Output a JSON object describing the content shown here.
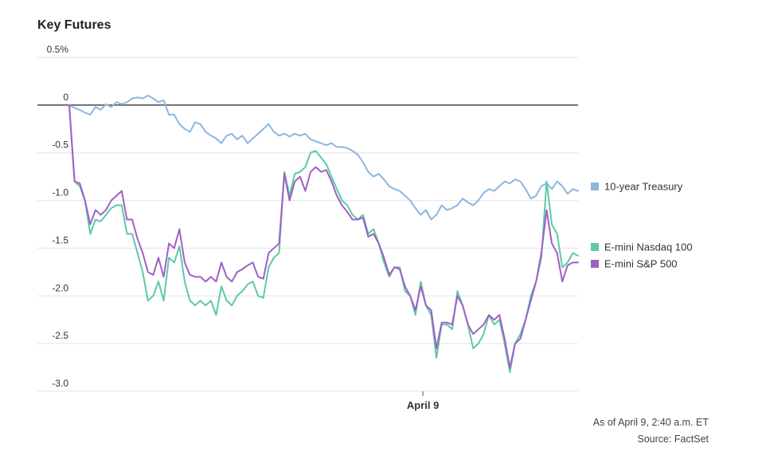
{
  "colors": {
    "treasury": "#8db5e0",
    "nasdaq": "#5cc9a7",
    "sp500": "#a15fc4",
    "grid": "#e4e4e4",
    "zero_line": "#555555"
  },
  "chart_data": {
    "type": "line",
    "title": "Key Futures",
    "xlabel": "",
    "ylabel": "",
    "ylim": [
      -3.0,
      0.5
    ],
    "y_ticks": [
      0.5,
      0.0,
      -0.5,
      -1.0,
      -1.5,
      -2.0,
      -2.5,
      -3.0
    ],
    "y_tick_labels": [
      "0.5%",
      "0",
      "-0.5",
      "-1.0",
      "-1.5",
      "-2.0",
      "-2.5",
      "-3.0"
    ],
    "x_tick_labels": [
      "April 9"
    ],
    "x_tick_positions": [
      0.695
    ],
    "grid": true,
    "legend_position": "right",
    "series": [
      {
        "name": "10-year Treasury",
        "color_key": "treasury",
        "values": [
          0,
          -0.03,
          -0.05,
          -0.08,
          -0.1,
          -0.02,
          -0.05,
          0.01,
          -0.02,
          0.03,
          0.01,
          0.03,
          0.07,
          0.08,
          0.07,
          0.1,
          0.07,
          0.03,
          0.05,
          -0.1,
          -0.1,
          -0.2,
          -0.25,
          -0.28,
          -0.18,
          -0.2,
          -0.28,
          -0.32,
          -0.35,
          -0.4,
          -0.32,
          -0.3,
          -0.36,
          -0.32,
          -0.4,
          -0.35,
          -0.3,
          -0.25,
          -0.2,
          -0.28,
          -0.32,
          -0.3,
          -0.33,
          -0.3,
          -0.32,
          -0.3,
          -0.36,
          -0.38,
          -0.4,
          -0.42,
          -0.4,
          -0.44,
          -0.44,
          -0.45,
          -0.48,
          -0.52,
          -0.6,
          -0.7,
          -0.75,
          -0.72,
          -0.78,
          -0.85,
          -0.88,
          -0.9,
          -0.95,
          -1.0,
          -1.08,
          -1.15,
          -1.1,
          -1.2,
          -1.15,
          -1.05,
          -1.1,
          -1.08,
          -1.05,
          -0.98,
          -1.02,
          -1.05,
          -1.0,
          -0.92,
          -0.88,
          -0.9,
          -0.85,
          -0.8,
          -0.82,
          -0.78,
          -0.8,
          -0.88,
          -0.98,
          -0.95,
          -0.85,
          -0.82,
          -0.88,
          -0.8,
          -0.85,
          -0.93,
          -0.88,
          -0.9
        ]
      },
      {
        "name": "E-mini Nasdaq 100",
        "color_key": "nasdaq",
        "values": [
          0,
          -0.8,
          -0.85,
          -1.0,
          -1.35,
          -1.2,
          -1.22,
          -1.15,
          -1.08,
          -1.05,
          -1.05,
          -1.35,
          -1.35,
          -1.55,
          -1.75,
          -2.05,
          -2.0,
          -1.85,
          -2.05,
          -1.6,
          -1.65,
          -1.48,
          -1.85,
          -2.05,
          -2.1,
          -2.05,
          -2.1,
          -2.05,
          -2.2,
          -1.9,
          -2.05,
          -2.1,
          -2.0,
          -1.95,
          -1.88,
          -1.85,
          -2.0,
          -2.02,
          -1.7,
          -1.6,
          -1.55,
          -0.7,
          -0.95,
          -0.72,
          -0.7,
          -0.65,
          -0.5,
          -0.48,
          -0.55,
          -0.62,
          -0.75,
          -0.88,
          -1.0,
          -1.05,
          -1.15,
          -1.2,
          -1.15,
          -1.35,
          -1.3,
          -1.45,
          -1.65,
          -1.8,
          -1.7,
          -1.7,
          -1.95,
          -2.0,
          -2.2,
          -1.85,
          -2.1,
          -2.2,
          -2.65,
          -2.3,
          -2.3,
          -2.35,
          -1.95,
          -2.1,
          -2.3,
          -2.55,
          -2.5,
          -2.4,
          -2.2,
          -2.3,
          -2.25,
          -2.5,
          -2.8,
          -2.5,
          -2.4,
          -2.25,
          -2.0,
          -1.85,
          -1.6,
          -0.8,
          -1.25,
          -1.35,
          -1.7,
          -1.65,
          -1.55,
          -1.58
        ]
      },
      {
        "name": "E-mini S&P 500",
        "color_key": "sp500",
        "values": [
          0,
          -0.8,
          -0.82,
          -1.0,
          -1.25,
          -1.1,
          -1.15,
          -1.1,
          -1.0,
          -0.95,
          -0.9,
          -1.2,
          -1.2,
          -1.4,
          -1.55,
          -1.75,
          -1.78,
          -1.6,
          -1.8,
          -1.45,
          -1.5,
          -1.3,
          -1.65,
          -1.78,
          -1.8,
          -1.8,
          -1.85,
          -1.8,
          -1.85,
          -1.65,
          -1.8,
          -1.85,
          -1.75,
          -1.72,
          -1.68,
          -1.65,
          -1.8,
          -1.82,
          -1.55,
          -1.5,
          -1.45,
          -0.72,
          -1.0,
          -0.8,
          -0.75,
          -0.9,
          -0.7,
          -0.65,
          -0.7,
          -0.68,
          -0.8,
          -0.95,
          -1.05,
          -1.12,
          -1.2,
          -1.2,
          -1.18,
          -1.38,
          -1.35,
          -1.45,
          -1.6,
          -1.78,
          -1.7,
          -1.72,
          -1.9,
          -2.0,
          -2.15,
          -1.9,
          -2.1,
          -2.15,
          -2.55,
          -2.28,
          -2.28,
          -2.3,
          -2.0,
          -2.1,
          -2.3,
          -2.4,
          -2.35,
          -2.3,
          -2.2,
          -2.25,
          -2.2,
          -2.45,
          -2.75,
          -2.5,
          -2.45,
          -2.25,
          -2.05,
          -1.85,
          -1.55,
          -1.1,
          -1.45,
          -1.55,
          -1.85,
          -1.68,
          -1.65,
          -1.65
        ]
      }
    ]
  },
  "footer": {
    "as_of": "As of April 9, 2:40 a.m. ET",
    "source": "Source: FactSet"
  }
}
